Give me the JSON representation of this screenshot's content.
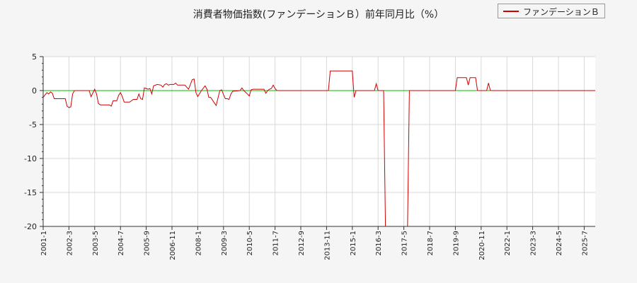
{
  "chart_data": {
    "type": "line",
    "title": "消費者物価指数(ファンデーションＢ）前年同月比（%）",
    "xlabel": "",
    "ylabel": "",
    "ylim": [
      -20,
      5
    ],
    "xlim": [
      "2001-01",
      "2026-01"
    ],
    "yticks": [
      5,
      0,
      -5,
      -10,
      -15,
      -20
    ],
    "xticks": [
      "2001-1",
      "2002-3",
      "2003-5",
      "2004-7",
      "2005-9",
      "2006-11",
      "2008-1",
      "2009-3",
      "2010-5",
      "2011-7",
      "2012-9",
      "2013-11",
      "2015-1",
      "2016-3",
      "2017-5",
      "2018-7",
      "2019-9",
      "2020-11",
      "2022-1",
      "2023-3",
      "2024-5",
      "2025-7"
    ],
    "grid": true,
    "legend_position": "top-right",
    "reference_line": {
      "y": 0,
      "color": "#00c000"
    },
    "series": [
      {
        "name": "ファンデーションＢ",
        "color": "#d00000",
        "points": [
          [
            "2001-01",
            -1.0
          ],
          [
            "2001-03",
            -0.3
          ],
          [
            "2001-04",
            -0.5
          ],
          [
            "2001-05",
            -0.2
          ],
          [
            "2001-06",
            -0.4
          ],
          [
            "2001-07",
            -1.2
          ],
          [
            "2001-12",
            -1.2
          ],
          [
            "2002-01",
            -1.2
          ],
          [
            "2002-02",
            -2.3
          ],
          [
            "2002-03",
            -2.5
          ],
          [
            "2002-04",
            -2.4
          ],
          [
            "2002-05",
            -0.5
          ],
          [
            "2002-06",
            0.0
          ],
          [
            "2003-02",
            0.0
          ],
          [
            "2003-03",
            -0.9
          ],
          [
            "2003-05",
            0.2
          ],
          [
            "2003-06",
            -0.5
          ],
          [
            "2003-07",
            -1.9
          ],
          [
            "2003-08",
            -2.1
          ],
          [
            "2004-01",
            -2.1
          ],
          [
            "2004-02",
            -2.3
          ],
          [
            "2004-03",
            -1.5
          ],
          [
            "2004-05",
            -1.5
          ],
          [
            "2004-06",
            -0.7
          ],
          [
            "2004-07",
            -0.3
          ],
          [
            "2004-08",
            -0.9
          ],
          [
            "2004-09",
            -1.7
          ],
          [
            "2004-12",
            -1.7
          ],
          [
            "2005-01",
            -1.5
          ],
          [
            "2005-02",
            -1.3
          ],
          [
            "2005-04",
            -1.3
          ],
          [
            "2005-05",
            -0.5
          ],
          [
            "2005-06",
            -1.2
          ],
          [
            "2005-07",
            -1.3
          ],
          [
            "2005-08",
            0.4
          ],
          [
            "2005-09",
            0.3
          ],
          [
            "2005-10",
            0.2
          ],
          [
            "2005-11",
            0.3
          ],
          [
            "2005-12",
            -0.5
          ],
          [
            "2006-01",
            0.7
          ],
          [
            "2006-03",
            0.9
          ],
          [
            "2006-05",
            0.8
          ],
          [
            "2006-06",
            0.5
          ],
          [
            "2006-07",
            0.9
          ],
          [
            "2006-08",
            1.0
          ],
          [
            "2006-09",
            0.8
          ],
          [
            "2006-10",
            0.9
          ],
          [
            "2006-12",
            0.9
          ],
          [
            "2007-01",
            1.1
          ],
          [
            "2007-02",
            0.8
          ],
          [
            "2007-06",
            0.8
          ],
          [
            "2007-07",
            0.5
          ],
          [
            "2007-08",
            0.2
          ],
          [
            "2007-10",
            1.6
          ],
          [
            "2007-11",
            1.7
          ],
          [
            "2007-12",
            -0.3
          ],
          [
            "2008-01",
            -0.9
          ],
          [
            "2008-03",
            0.0
          ],
          [
            "2008-05",
            0.7
          ],
          [
            "2008-06",
            0.2
          ],
          [
            "2008-07",
            -1.0
          ],
          [
            "2008-08",
            -1.0
          ],
          [
            "2008-10",
            -1.8
          ],
          [
            "2008-11",
            -2.2
          ],
          [
            "2009-01",
            0.0
          ],
          [
            "2009-02",
            0.1
          ],
          [
            "2009-03",
            -0.6
          ],
          [
            "2009-04",
            -1.2
          ],
          [
            "2009-05",
            -1.2
          ],
          [
            "2009-06",
            -1.3
          ],
          [
            "2009-07",
            -0.5
          ],
          [
            "2009-08",
            -0.1
          ],
          [
            "2009-12",
            0.0
          ],
          [
            "2010-01",
            0.4
          ],
          [
            "2010-02",
            0.0
          ],
          [
            "2010-04",
            -0.5
          ],
          [
            "2010-05",
            -0.8
          ],
          [
            "2010-06",
            0.1
          ],
          [
            "2010-07",
            0.2
          ],
          [
            "2011-01",
            0.2
          ],
          [
            "2011-02",
            -0.4
          ],
          [
            "2011-03",
            0.0
          ],
          [
            "2011-04",
            0.2
          ],
          [
            "2011-05",
            0.3
          ],
          [
            "2011-06",
            0.8
          ],
          [
            "2011-07",
            0.3
          ],
          [
            "2011-08",
            0.0
          ],
          [
            "2013-12",
            0.0
          ],
          [
            "2014-01",
            2.9
          ],
          [
            "2014-12",
            2.9
          ],
          [
            "2015-01",
            2.9
          ],
          [
            "2015-02",
            -1.0
          ],
          [
            "2015-03",
            0.0
          ],
          [
            "2016-01",
            0.0
          ],
          [
            "2016-02",
            1.0
          ],
          [
            "2016-03",
            0.0
          ],
          [
            "2016-06",
            0.0
          ],
          [
            "2016-07",
            -20.0
          ],
          [
            "2017-07",
            -20.0
          ],
          [
            "2017-08",
            0.0
          ],
          [
            "2019-09",
            0.0
          ],
          [
            "2019-10",
            1.9
          ],
          [
            "2020-02",
            1.9
          ],
          [
            "2020-03",
            1.9
          ],
          [
            "2020-04",
            0.8
          ],
          [
            "2020-05",
            1.9
          ],
          [
            "2020-08",
            1.9
          ],
          [
            "2020-09",
            0.0
          ],
          [
            "2021-02",
            0.0
          ],
          [
            "2021-03",
            1.1
          ],
          [
            "2021-04",
            0.0
          ],
          [
            "2026-01",
            0.0
          ]
        ]
      }
    ]
  }
}
